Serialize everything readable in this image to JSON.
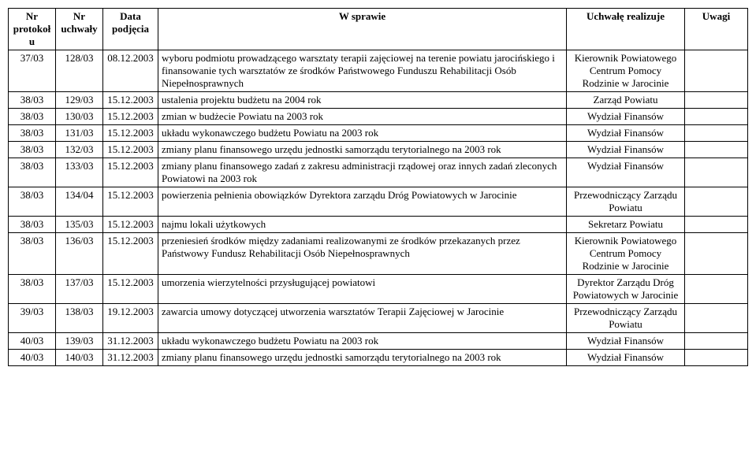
{
  "table": {
    "headers": {
      "h1": "Nr protokoł u",
      "h2": "Nr uchwały",
      "h3": "Data podjęcia",
      "h4": "W sprawie",
      "h5": "Uchwałę realizuje",
      "h6": "Uwagi"
    },
    "rows": [
      {
        "c1": "37/03",
        "c2": "128/03",
        "c3": "08.12.2003",
        "c4": "wyboru podmiotu prowadzącego warsztaty terapii zajęciowej na terenie powiatu jarocińskiego i finansowanie tych warsztatów ze środków Państwowego Funduszu Rehabilitacji Osób Niepełnosprawnych",
        "c5": "Kierownik Powiatowego Centrum Pomocy Rodzinie w Jarocinie",
        "c6": ""
      },
      {
        "c1": "38/03",
        "c2": "129/03",
        "c3": "15.12.2003",
        "c4": "ustalenia projektu budżetu na 2004 rok",
        "c5": "Zarząd Powiatu",
        "c6": ""
      },
      {
        "c1": "38/03",
        "c2": "130/03",
        "c3": "15.12.2003",
        "c4": "zmian w budżecie Powiatu na 2003 rok",
        "c5": "Wydział Finansów",
        "c6": ""
      },
      {
        "c1": "38/03",
        "c2": "131/03",
        "c3": "15.12.2003",
        "c4": "układu wykonawczego budżetu Powiatu na 2003 rok",
        "c5": "Wydział Finansów",
        "c6": ""
      },
      {
        "c1": "38/03",
        "c2": "132/03",
        "c3": "15.12.2003",
        "c4": "zmiany planu finansowego urzędu jednostki samorządu terytorialnego na 2003 rok",
        "c5": "Wydział Finansów",
        "c6": ""
      },
      {
        "c1": "38/03",
        "c2": "133/03",
        "c3": "15.12.2003",
        "c4": "zmiany planu finansowego zadań z zakresu administracji rządowej oraz innych zadań zleconych Powiatowi na 2003 rok",
        "c5": "Wydział Finansów",
        "c6": ""
      },
      {
        "c1": "38/03",
        "c2": "134/04",
        "c3": "15.12.2003",
        "c4": "powierzenia pełnienia obowiązków Dyrektora zarządu Dróg Powiatowych w Jarocinie",
        "c5": "Przewodniczący Zarządu Powiatu",
        "c6": ""
      },
      {
        "c1": "38/03",
        "c2": "135/03",
        "c3": "15.12.2003",
        "c4": "najmu lokali użytkowych",
        "c5": "Sekretarz Powiatu",
        "c6": ""
      },
      {
        "c1": "38/03",
        "c2": "136/03",
        "c3": "15.12.2003",
        "c4": "przeniesień środków między zadaniami realizowanymi ze środków przekazanych przez Państwowy Fundusz Rehabilitacji Osób Niepełnosprawnych",
        "c5": "Kierownik Powiatowego Centrum Pomocy Rodzinie w Jarocinie",
        "c6": ""
      },
      {
        "c1": "38/03",
        "c2": "137/03",
        "c3": "15.12.2003",
        "c4": "umorzenia wierzytelności przysługującej powiatowi",
        "c5": "Dyrektor Zarządu Dróg Powiatowych w Jarocinie",
        "c6": ""
      },
      {
        "c1": "39/03",
        "c2": "138/03",
        "c3": "19.12.2003",
        "c4": "zawarcia umowy dotyczącej utworzenia warsztatów Terapii Zajęciowej w Jarocinie",
        "c5": "Przewodniczący Zarządu Powiatu",
        "c6": ""
      },
      {
        "c1": "40/03",
        "c2": "139/03",
        "c3": "31.12.2003",
        "c4": "układu wykonawczego budżetu Powiatu na 2003 rok",
        "c5": "Wydział Finansów",
        "c6": ""
      },
      {
        "c1": "40/03",
        "c2": "140/03",
        "c3": "31.12.2003",
        "c4": "zmiany planu finansowego urzędu jednostki samorządu terytorialnego na 2003 rok",
        "c5": "Wydział Finansów",
        "c6": ""
      }
    ]
  },
  "colors": {
    "background": "#ffffff",
    "border": "#000000",
    "text": "#000000"
  },
  "typography": {
    "font_family": "Times New Roman",
    "font_size_pt": 10,
    "header_weight": "bold"
  }
}
